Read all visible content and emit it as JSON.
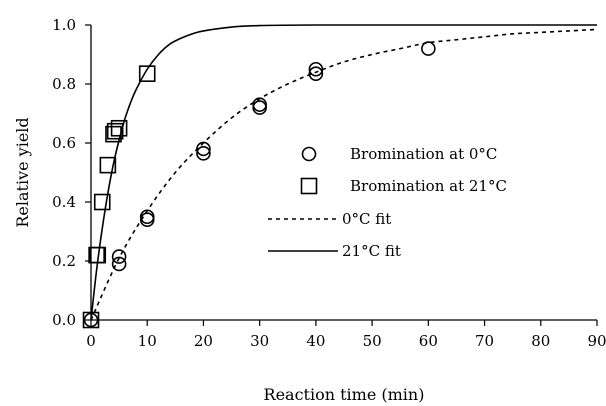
{
  "chart_data": {
    "type": "scatter",
    "title": "",
    "xlabel": "Reaction time (min)",
    "ylabel": "Relative yield",
    "xlim": [
      0,
      90
    ],
    "ylim": [
      0,
      1.0
    ],
    "x_ticks": [
      "0",
      "10",
      "20",
      "30",
      "40",
      "50",
      "60",
      "70",
      "80",
      "90"
    ],
    "y_ticks": [
      "0.0",
      "0.2",
      "0.4",
      "0.6",
      "0.8",
      "1.0"
    ],
    "grid": false,
    "legend_position": "right",
    "series": [
      {
        "name": "Bromination at 0°C",
        "kind": "markers",
        "marker": "circle",
        "points": [
          [
            0,
            0.0
          ],
          [
            5,
            0.19
          ],
          [
            5,
            0.215
          ],
          [
            10,
            0.34
          ],
          [
            10,
            0.35
          ],
          [
            20,
            0.565
          ],
          [
            20,
            0.58
          ],
          [
            30,
            0.72
          ],
          [
            30,
            0.73
          ],
          [
            40,
            0.835
          ],
          [
            40,
            0.85
          ],
          [
            60,
            0.92
          ]
        ]
      },
      {
        "name": "Bromination at 21°C",
        "kind": "markers",
        "marker": "square",
        "points": [
          [
            0,
            0.0
          ],
          [
            1,
            0.22
          ],
          [
            1.2,
            0.22
          ],
          [
            2,
            0.4
          ],
          [
            3,
            0.525
          ],
          [
            4,
            0.63
          ],
          [
            4.3,
            0.64
          ],
          [
            5,
            0.65
          ],
          [
            10,
            0.835
          ]
        ]
      },
      {
        "name": "0°C fit",
        "kind": "line",
        "dash": "dashed",
        "points": [
          [
            0,
            0.0
          ],
          [
            5,
            0.21
          ],
          [
            10,
            0.37
          ],
          [
            15,
            0.5
          ],
          [
            20,
            0.6
          ],
          [
            25,
            0.685
          ],
          [
            30,
            0.75
          ],
          [
            35,
            0.8
          ],
          [
            40,
            0.84
          ],
          [
            45,
            0.875
          ],
          [
            50,
            0.9
          ],
          [
            55,
            0.92
          ],
          [
            60,
            0.94
          ],
          [
            65,
            0.95
          ],
          [
            70,
            0.96
          ],
          [
            75,
            0.97
          ],
          [
            80,
            0.975
          ],
          [
            85,
            0.98
          ],
          [
            90,
            0.985
          ]
        ]
      },
      {
        "name": "21°C fit",
        "kind": "line",
        "dash": "solid",
        "points": [
          [
            0,
            0.0
          ],
          [
            1,
            0.17
          ],
          [
            2,
            0.31
          ],
          [
            3,
            0.43
          ],
          [
            4,
            0.53
          ],
          [
            5,
            0.61
          ],
          [
            6,
            0.68
          ],
          [
            7,
            0.735
          ],
          [
            8,
            0.78
          ],
          [
            10,
            0.85
          ],
          [
            12,
            0.9
          ],
          [
            14,
            0.935
          ],
          [
            16,
            0.955
          ],
          [
            18,
            0.97
          ],
          [
            20,
            0.98
          ],
          [
            25,
            0.993
          ],
          [
            30,
            0.998
          ],
          [
            40,
            1.0
          ],
          [
            60,
            1.0
          ],
          [
            90,
            1.0
          ]
        ]
      }
    ]
  }
}
